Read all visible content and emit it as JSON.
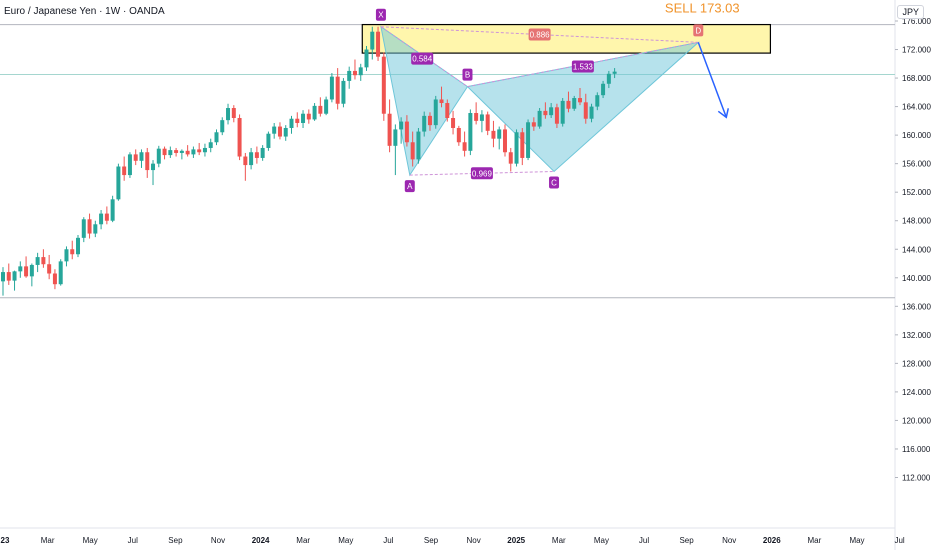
{
  "header": {
    "title": "Euro / Japanese Yen · 1W · OANDA",
    "currency": "JPY"
  },
  "chart_data": {
    "type": "candlestick",
    "symbol": "EURJPY",
    "ylim": [
      108,
      178
    ],
    "y_ticks": [
      "112.000",
      "116.000",
      "120.000",
      "124.000",
      "128.000",
      "132.000",
      "136.000",
      "140.000",
      "144.000",
      "148.000",
      "152.000",
      "156.000",
      "160.000",
      "164.000",
      "168.000",
      "172.000",
      "176.000"
    ],
    "x_ticks": [
      {
        "label": "23",
        "bold": true
      },
      {
        "label": "Mar",
        "bold": false
      },
      {
        "label": "May",
        "bold": false
      },
      {
        "label": "Jul",
        "bold": false
      },
      {
        "label": "Sep",
        "bold": false
      },
      {
        "label": "Nov",
        "bold": false
      },
      {
        "label": "2024",
        "bold": true
      },
      {
        "label": "Mar",
        "bold": false
      },
      {
        "label": "May",
        "bold": false
      },
      {
        "label": "Jul",
        "bold": false
      },
      {
        "label": "Sep",
        "bold": false
      },
      {
        "label": "Nov",
        "bold": false
      },
      {
        "label": "2025",
        "bold": true
      },
      {
        "label": "Mar",
        "bold": false
      },
      {
        "label": "May",
        "bold": false
      },
      {
        "label": "Jul",
        "bold": false
      },
      {
        "label": "Sep",
        "bold": false
      },
      {
        "label": "Nov",
        "bold": false
      },
      {
        "label": "2026",
        "bold": true
      },
      {
        "label": "Mar",
        "bold": false
      },
      {
        "label": "May",
        "bold": false
      },
      {
        "label": "Jul",
        "bold": false
      }
    ],
    "horizontal_levels": [
      175.5,
      168.5,
      137.2
    ],
    "sell_zone": [
      171.5,
      175.5
    ],
    "pattern_points": [
      {
        "label": "X",
        "price": 175.2
      },
      {
        "label": "A",
        "price": 154.4
      },
      {
        "label": "B",
        "price": 166.8
      },
      {
        "label": "C",
        "price": 154.9
      },
      {
        "label": "D",
        "price": 173.0
      }
    ],
    "ratios": [
      "0.886",
      "0.584",
      "1.533",
      "0.969"
    ],
    "annotation": "SELL 173.03",
    "colors": {
      "up": "#26a69a",
      "down": "#ef5350",
      "pattern": "#6ec6d9",
      "zone": "#fff59d",
      "label": "#9c27b0",
      "sell": "#f0932b",
      "arrow": "#2962ff"
    },
    "candles": [
      [
        139.5,
        141.5,
        137.5,
        140.8
      ],
      [
        140.8,
        142.0,
        139.0,
        139.6
      ],
      [
        139.6,
        141.0,
        138.2,
        140.9
      ],
      [
        140.9,
        142.3,
        140.0,
        141.6
      ],
      [
        141.6,
        143.0,
        140.0,
        140.2
      ],
      [
        140.2,
        142.0,
        138.8,
        141.8
      ],
      [
        141.8,
        143.5,
        140.8,
        142.9
      ],
      [
        142.9,
        144.0,
        141.4,
        141.9
      ],
      [
        141.9,
        143.2,
        139.8,
        140.6
      ],
      [
        140.6,
        141.2,
        138.4,
        139.1
      ],
      [
        139.1,
        142.6,
        138.9,
        142.3
      ],
      [
        142.3,
        144.4,
        141.6,
        144.0
      ],
      [
        144.0,
        145.2,
        142.6,
        143.3
      ],
      [
        143.3,
        146.0,
        142.9,
        145.6
      ],
      [
        145.6,
        148.5,
        145.0,
        148.2
      ],
      [
        148.2,
        149.0,
        145.5,
        146.2
      ],
      [
        146.2,
        148.0,
        145.7,
        147.5
      ],
      [
        147.5,
        149.5,
        146.8,
        149.0
      ],
      [
        149.0,
        150.0,
        147.5,
        148.0
      ],
      [
        148.0,
        151.5,
        147.8,
        151.0
      ],
      [
        151.0,
        156.0,
        150.8,
        155.6
      ],
      [
        155.6,
        157.0,
        153.6,
        154.4
      ],
      [
        154.4,
        157.6,
        154.0,
        157.3
      ],
      [
        157.3,
        158.0,
        155.8,
        156.4
      ],
      [
        156.4,
        158.0,
        155.4,
        157.6
      ],
      [
        157.6,
        158.2,
        154.0,
        155.1
      ],
      [
        155.1,
        156.5,
        153.0,
        156.0
      ],
      [
        156.0,
        158.5,
        155.5,
        158.1
      ],
      [
        158.1,
        158.4,
        156.6,
        157.2
      ],
      [
        157.2,
        158.4,
        156.8,
        157.9
      ],
      [
        157.9,
        158.2,
        157.0,
        157.5
      ],
      [
        157.5,
        158.0,
        156.6,
        157.8
      ],
      [
        157.8,
        158.6,
        157.0,
        157.3
      ],
      [
        157.3,
        158.4,
        156.8,
        158.0
      ],
      [
        158.0,
        158.9,
        157.2,
        157.6
      ],
      [
        157.6,
        158.8,
        157.0,
        158.2
      ],
      [
        158.2,
        159.5,
        157.6,
        159.0
      ],
      [
        159.0,
        160.8,
        158.6,
        160.4
      ],
      [
        160.4,
        162.5,
        160.0,
        162.1
      ],
      [
        162.1,
        164.4,
        161.5,
        163.8
      ],
      [
        163.8,
        164.2,
        161.8,
        162.4
      ],
      [
        162.4,
        162.9,
        156.5,
        157.0
      ],
      [
        157.0,
        157.5,
        153.6,
        155.8
      ],
      [
        155.8,
        158.2,
        155.2,
        157.6
      ],
      [
        157.6,
        158.4,
        156.0,
        156.8
      ],
      [
        156.8,
        158.6,
        156.4,
        158.2
      ],
      [
        158.2,
        160.5,
        157.8,
        160.2
      ],
      [
        160.2,
        161.7,
        159.5,
        161.2
      ],
      [
        161.2,
        161.8,
        159.4,
        159.8
      ],
      [
        159.8,
        161.4,
        159.2,
        161.0
      ],
      [
        161.0,
        162.7,
        160.2,
        162.3
      ],
      [
        162.3,
        163.2,
        161.1,
        161.7
      ],
      [
        161.7,
        163.5,
        161.0,
        163.0
      ],
      [
        163.0,
        163.6,
        161.6,
        162.2
      ],
      [
        162.2,
        164.5,
        162.0,
        164.1
      ],
      [
        164.1,
        165.3,
        162.6,
        163.0
      ],
      [
        163.0,
        165.4,
        162.8,
        165.0
      ],
      [
        165.0,
        168.7,
        164.6,
        168.2
      ],
      [
        168.2,
        169.4,
        163.6,
        164.4
      ],
      [
        164.4,
        168.0,
        163.9,
        167.6
      ],
      [
        167.6,
        169.6,
        166.5,
        169.0
      ],
      [
        169.0,
        170.6,
        167.8,
        168.4
      ],
      [
        168.4,
        170.0,
        167.6,
        169.5
      ],
      [
        169.5,
        172.5,
        169.0,
        172.0
      ],
      [
        172.0,
        175.2,
        170.6,
        174.5
      ],
      [
        174.5,
        175.2,
        170.4,
        171.0
      ],
      [
        171.0,
        171.6,
        162.0,
        163.0
      ],
      [
        163.0,
        165.0,
        157.6,
        158.5
      ],
      [
        158.5,
        161.5,
        154.4,
        160.8
      ],
      [
        160.8,
        162.5,
        158.8,
        161.9
      ],
      [
        161.9,
        162.8,
        158.4,
        159.0
      ],
      [
        159.0,
        160.5,
        155.6,
        156.6
      ],
      [
        156.6,
        161.0,
        156.0,
        160.5
      ],
      [
        160.5,
        163.3,
        159.8,
        162.7
      ],
      [
        162.7,
        163.2,
        160.6,
        161.4
      ],
      [
        161.4,
        165.5,
        160.9,
        165.0
      ],
      [
        165.0,
        166.8,
        163.9,
        164.5
      ],
      [
        164.5,
        165.0,
        161.9,
        162.4
      ],
      [
        162.4,
        163.4,
        160.1,
        161.0
      ],
      [
        161.0,
        161.3,
        158.5,
        159.0
      ],
      [
        159.0,
        160.5,
        157.0,
        157.8
      ],
      [
        157.8,
        163.6,
        157.2,
        163.1
      ],
      [
        163.1,
        164.6,
        161.5,
        162.0
      ],
      [
        162.0,
        163.5,
        160.4,
        162.9
      ],
      [
        162.9,
        163.3,
        160.0,
        160.6
      ],
      [
        160.6,
        162.0,
        158.3,
        159.5
      ],
      [
        159.5,
        161.2,
        158.0,
        160.8
      ],
      [
        160.8,
        161.5,
        157.0,
        157.6
      ],
      [
        157.6,
        158.2,
        154.9,
        156.0
      ],
      [
        156.0,
        160.8,
        155.6,
        160.4
      ],
      [
        160.4,
        161.0,
        155.8,
        156.8
      ],
      [
        156.8,
        162.2,
        156.5,
        161.8
      ],
      [
        161.8,
        162.5,
        160.6,
        161.2
      ],
      [
        161.2,
        163.8,
        160.9,
        163.4
      ],
      [
        163.4,
        164.6,
        162.3,
        162.8
      ],
      [
        162.8,
        164.5,
        162.4,
        163.9
      ],
      [
        163.9,
        164.4,
        161.0,
        161.6
      ],
      [
        161.6,
        165.2,
        161.2,
        164.8
      ],
      [
        164.8,
        166.1,
        163.2,
        163.7
      ],
      [
        163.7,
        165.5,
        163.4,
        165.2
      ],
      [
        165.2,
        166.6,
        164.2,
        164.6
      ],
      [
        164.6,
        165.8,
        161.6,
        162.3
      ],
      [
        162.3,
        164.4,
        161.8,
        164.0
      ],
      [
        164.0,
        166.0,
        163.5,
        165.6
      ],
      [
        165.6,
        167.6,
        165.2,
        167.2
      ],
      [
        167.2,
        169.0,
        166.6,
        168.6
      ],
      [
        168.6,
        169.4,
        168.0,
        168.9
      ]
    ]
  }
}
